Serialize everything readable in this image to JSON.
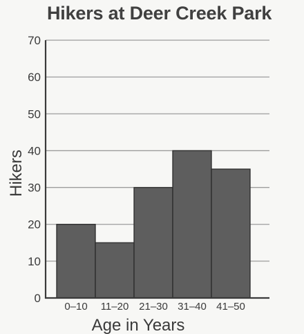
{
  "chart_data": {
    "type": "bar",
    "title": "Hikers at Deer Creek Park",
    "xlabel": "Age in Years",
    "ylabel": "Hikers",
    "categories": [
      "0–10",
      "11–20",
      "21–30",
      "31–40",
      "41–50"
    ],
    "values": [
      20,
      15,
      30,
      40,
      35
    ],
    "ylim": [
      0,
      70
    ],
    "yticks": [
      0,
      10,
      20,
      30,
      40,
      50,
      60,
      70
    ],
    "grid": true,
    "bar_color": "#5e5e5e",
    "legend": false
  }
}
